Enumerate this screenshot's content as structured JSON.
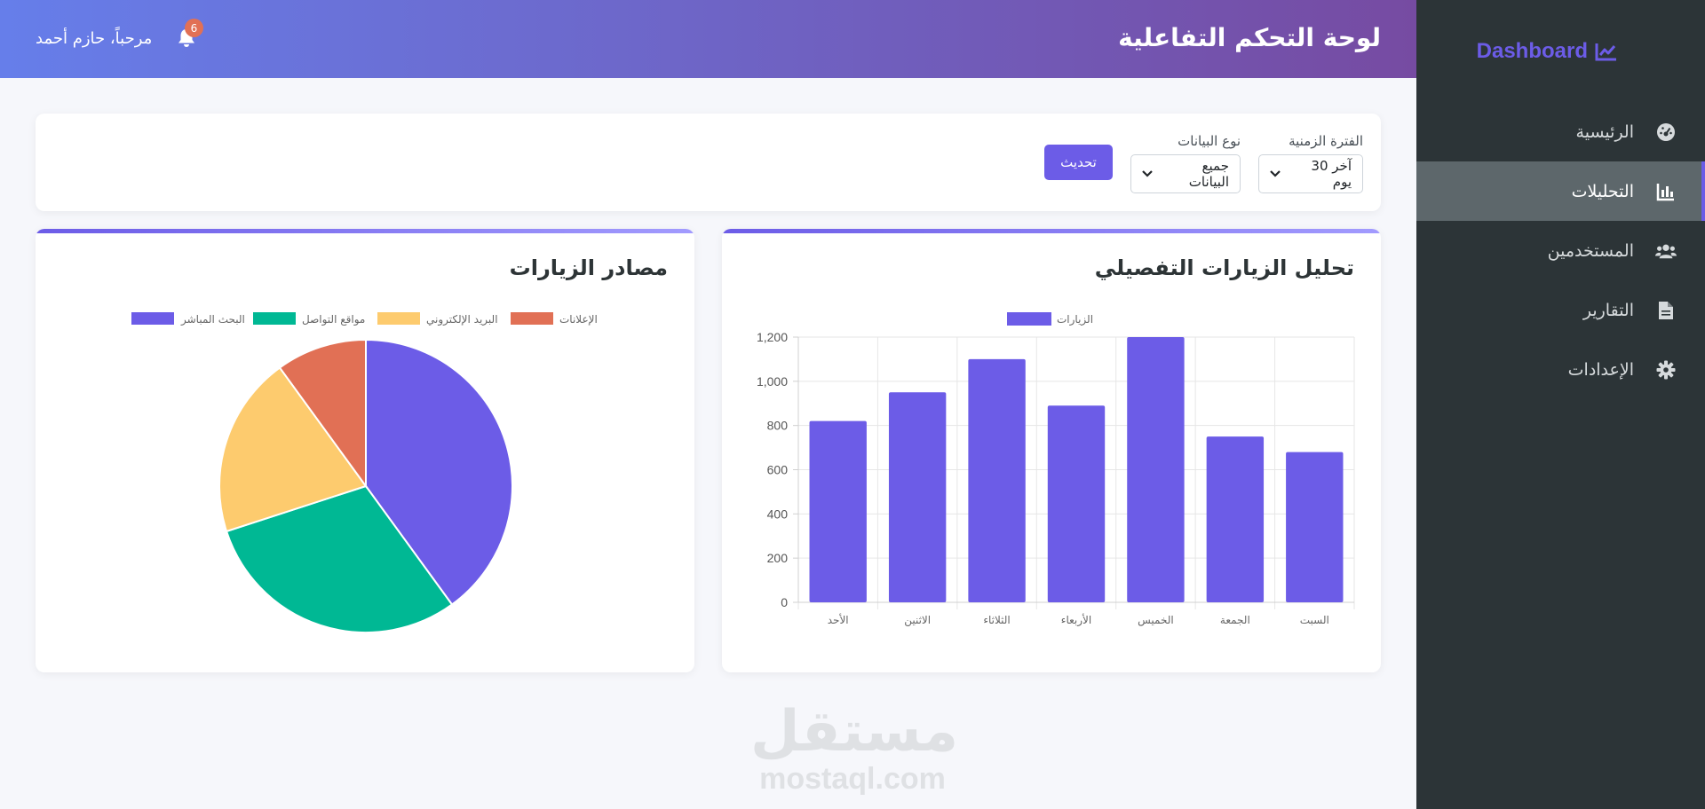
{
  "sidebar": {
    "brand": "Dashboard",
    "brand_icon": "line-chart-icon",
    "items": [
      {
        "label": "الرئيسية",
        "icon": "dashboard-gauge-icon",
        "active": false
      },
      {
        "label": "التحليلات",
        "icon": "bar-chart-icon",
        "active": true
      },
      {
        "label": "المستخدمين",
        "icon": "users-icon",
        "active": false
      },
      {
        "label": "التقارير",
        "icon": "file-icon",
        "active": false
      },
      {
        "label": "الإعدادات",
        "icon": "gear-icon",
        "active": false
      }
    ],
    "accent": "#6c5ce7"
  },
  "header": {
    "title": "لوحة التحكم التفاعلية",
    "greeting": "مرحباً، حازم أحمد",
    "notifications_count": "6"
  },
  "filters": {
    "period_label": "الفترة الزمنية",
    "period_value": "آخر 30 يوم",
    "type_label": "نوع البيانات",
    "type_value": "جميع البيانات",
    "refresh_label": "تحديث"
  },
  "bar_card": {
    "title": "تحليل الزيارات التفصيلي"
  },
  "pie_card": {
    "title": "مصادر الزيارات"
  },
  "chart_data": [
    {
      "type": "bar",
      "categories": [
        "الأحد",
        "الاثنين",
        "الثلاثاء",
        "الأربعاء",
        "الخميس",
        "الجمعة",
        "السبت"
      ],
      "series": [
        {
          "name": "الزيارات",
          "values": [
            820,
            950,
            1100,
            890,
            1200,
            750,
            680
          ],
          "color": "#6c5ce7"
        }
      ],
      "ylim": [
        0,
        1200
      ],
      "yticks": [
        "0",
        "200",
        "400",
        "600",
        "800",
        "1,000",
        "1,200"
      ],
      "grid": true,
      "legend": "top-center"
    },
    {
      "type": "pie",
      "labels": [
        "البحث المباشر",
        "مواقع التواصل",
        "البريد الإلكتروني",
        "الإعلانات"
      ],
      "values": [
        40,
        30,
        20,
        10
      ],
      "colors": [
        "#6c5ce7",
        "#00b894",
        "#fdcb6e",
        "#e17055"
      ],
      "legend": "top-center"
    }
  ],
  "watermark": {
    "ar": "مستقل",
    "en": "mostaql.com"
  }
}
